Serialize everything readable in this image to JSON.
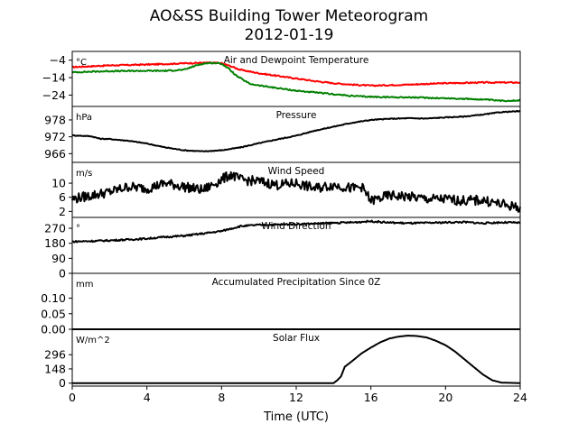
{
  "title": "AO&SS Building Tower Meteorogram",
  "subtitle": "2012-01-19",
  "xlabel": "Time (UTC)",
  "x_ticks": [
    0,
    4,
    8,
    12,
    16,
    20,
    24
  ],
  "x_range": [
    0,
    24
  ],
  "colors": {
    "temperature": "#ff0000",
    "dewpoint": "#008000",
    "other": "#000000"
  },
  "chart_data": [
    {
      "type": "line",
      "title": "Air and Dewpoint Temperature",
      "ylabel": "°C",
      "ylim": [
        -30.5,
        1.0
      ],
      "y_ticks": [
        -4,
        -14,
        -24
      ],
      "series": [
        {
          "color": "red",
          "x": [
            0,
            1,
            2,
            3,
            4,
            5,
            6,
            7,
            7.5,
            8,
            8.5,
            9,
            10,
            11,
            12,
            13,
            14,
            15,
            16,
            18,
            20,
            22,
            24
          ],
          "y": [
            -8,
            -7.5,
            -7,
            -6.8,
            -6.5,
            -6.2,
            -5.8,
            -5.5,
            -5.5,
            -5.8,
            -7.5,
            -9.5,
            -11.5,
            -13,
            -14.5,
            -16,
            -17.2,
            -18,
            -18.6,
            -18,
            -17.2,
            -16.8,
            -16.8
          ]
        },
        {
          "color": "green",
          "x": [
            0,
            1,
            2,
            3,
            4,
            5,
            6,
            6.5,
            7,
            7.5,
            8,
            8.4,
            8.8,
            9.5,
            10,
            11,
            12,
            13,
            14,
            15,
            16,
            18,
            20,
            22,
            23,
            24
          ],
          "y": [
            -11,
            -10.6,
            -10.3,
            -10.2,
            -10.1,
            -10.1,
            -9.5,
            -7.5,
            -6,
            -5.6,
            -6,
            -9,
            -13,
            -17.5,
            -18.5,
            -20,
            -21.5,
            -22.5,
            -23.5,
            -24.5,
            -25,
            -25.3,
            -25.8,
            -26.5,
            -27.3,
            -27
          ]
        }
      ]
    },
    {
      "type": "line",
      "title": "Pressure",
      "ylabel": "hPa",
      "ylim": [
        962.9,
        982.8
      ],
      "y_ticks": [
        978,
        972,
        966
      ],
      "series": [
        {
          "color": "black",
          "x": [
            0,
            1,
            1.5,
            2,
            3,
            4,
            5,
            6,
            7,
            8,
            9,
            10,
            11,
            12,
            13,
            14,
            15,
            16,
            17,
            18,
            19,
            20,
            21,
            22,
            23,
            24
          ],
          "y": [
            972.5,
            972.2,
            971.3,
            971.2,
            970.6,
            969.6,
            968.2,
            967.2,
            966.8,
            967.2,
            968.2,
            969.7,
            971.1,
            972.4,
            974.2,
            975.6,
            977.0,
            978.0,
            978.4,
            978.6,
            978.5,
            978.9,
            979.2,
            979.9,
            980.8,
            981.1
          ]
        }
      ]
    },
    {
      "type": "line",
      "title": "Wind Speed",
      "ylabel": "m/s",
      "ylim": [
        0.3,
        15.9
      ],
      "y_ticks": [
        10,
        6,
        2
      ],
      "series": [
        {
          "color": "black",
          "x": [
            0,
            1,
            2,
            3,
            4,
            5,
            6,
            7,
            8,
            8.5,
            9,
            10,
            11,
            12,
            13,
            14,
            15,
            15.5,
            16,
            17,
            18,
            19,
            20,
            21,
            22,
            23,
            24
          ],
          "y": [
            5.5,
            6.5,
            7.5,
            9,
            8.5,
            10,
            9,
            8,
            11,
            12.5,
            11,
            10.5,
            9.5,
            10,
            8.5,
            9.5,
            8.5,
            9,
            5,
            6.5,
            6.2,
            5.5,
            5.5,
            5,
            5.2,
            4,
            3
          ]
        }
      ]
    },
    {
      "type": "line",
      "title": "Wind Direction",
      "ylabel": "°",
      "ylim": [
        0,
        335
      ],
      "y_ticks": [
        270,
        180,
        90,
        0
      ],
      "series": [
        {
          "color": "black",
          "x": [
            0,
            1,
            2,
            3,
            4,
            5,
            6,
            7,
            8,
            8.5,
            9,
            10,
            11,
            12,
            13,
            14,
            15,
            16,
            17,
            18,
            19,
            20,
            21,
            22,
            23,
            24
          ],
          "y": [
            190,
            193,
            197,
            202,
            208,
            218,
            225,
            238,
            253,
            268,
            282,
            290,
            292,
            295,
            298,
            302,
            305,
            312,
            304,
            300,
            302,
            305,
            307,
            300,
            305,
            303
          ]
        }
      ]
    },
    {
      "type": "line",
      "title": "Accumulated Precipitation Since 0Z",
      "ylabel": "mm",
      "ylim": [
        0,
        0.18
      ],
      "y_ticks": [
        0.1,
        0.05,
        0.0
      ],
      "series": [
        {
          "color": "black",
          "x": [
            0,
            24
          ],
          "y": [
            0,
            0
          ]
        }
      ]
    },
    {
      "type": "line",
      "title": "Solar Flux",
      "ylabel": "W/m^2",
      "ylim": [
        -31,
        561
      ],
      "y_ticks": [
        296,
        148,
        0
      ],
      "series": [
        {
          "color": "black",
          "x": [
            0,
            14,
            14.2,
            14.4,
            14.5,
            14.6,
            15,
            15.5,
            16,
            16.5,
            17,
            17.5,
            18,
            18.5,
            19,
            19.5,
            20,
            20.5,
            21,
            21.5,
            22,
            22.5,
            23,
            24
          ],
          "y": [
            0,
            0,
            30,
            70,
            120,
            170,
            230,
            310,
            370,
            425,
            465,
            485,
            495,
            490,
            475,
            440,
            395,
            330,
            250,
            170,
            90,
            30,
            5,
            0
          ]
        }
      ]
    }
  ]
}
